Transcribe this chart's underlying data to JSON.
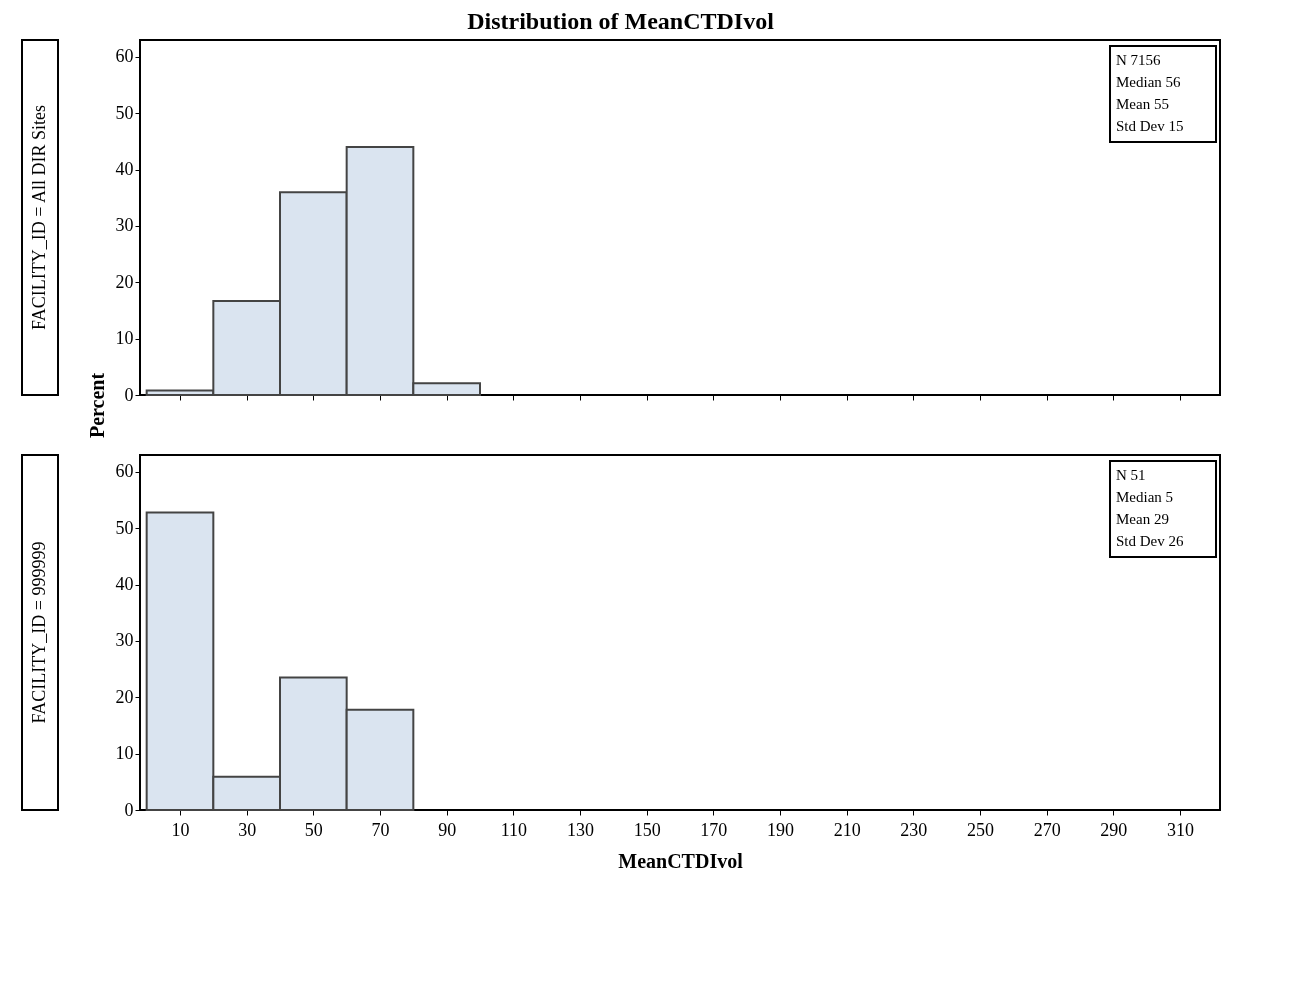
{
  "chart_data": [
    {
      "type": "histogram",
      "title": "Distribution of MeanCTDIvol",
      "ylabel": "Percent",
      "subtitle": "FACILITY_ID = All DIR Sites",
      "bins": [
        0,
        20,
        40,
        60,
        80,
        100
      ],
      "values": [
        0.8,
        16.7,
        36,
        44,
        2.1
      ],
      "color": "#dae4f0",
      "xlim": [
        -2,
        322
      ],
      "xticks": [
        10,
        30,
        50,
        70,
        90,
        110,
        130,
        150,
        170,
        190,
        210,
        230,
        250,
        270,
        290,
        310
      ],
      "ylim": [
        0,
        63
      ],
      "yticks": [
        0,
        10,
        20,
        30,
        40,
        50,
        60
      ],
      "tick_labels": "y",
      "grid": false,
      "annotations": [
        "N 7156",
        "Median 56",
        "Mean 55",
        "Std Dev 15"
      ]
    },
    {
      "type": "histogram",
      "xlabel": "MeanCTDIvol",
      "subtitle": "FACILITY_ID = 999999",
      "bins": [
        0,
        20,
        40,
        60,
        80
      ],
      "values": [
        52.8,
        5.9,
        23.5,
        17.8
      ],
      "color": "#dae4f0",
      "xlim": [
        -2,
        322
      ],
      "xticks": [
        10,
        30,
        50,
        70,
        90,
        110,
        130,
        150,
        170,
        190,
        210,
        230,
        250,
        270,
        290,
        310
      ],
      "ylim": [
        0,
        63
      ],
      "yticks": [
        0,
        10,
        20,
        30,
        40,
        50,
        60
      ],
      "grid": false,
      "annotations": [
        "N 51",
        "Median 5",
        "Mean 29",
        "Std Dev 26"
      ]
    }
  ]
}
